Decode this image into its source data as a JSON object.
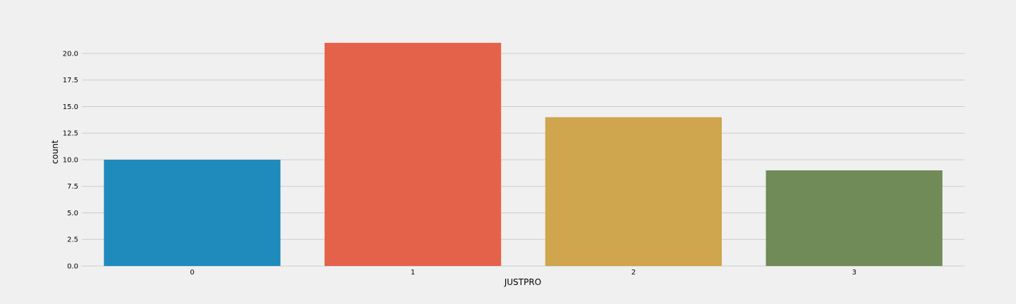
{
  "chart_data": {
    "type": "bar",
    "categories": [
      "0",
      "1",
      "2",
      "3"
    ],
    "values": [
      10,
      21,
      14,
      9
    ],
    "colors": [
      "#1f8bbd",
      "#e5624a",
      "#cfa54d",
      "#708b57"
    ],
    "xlabel": "JUSTPRO",
    "ylabel": "count",
    "ylim": [
      0,
      22.05
    ],
    "yticks": [
      0.0,
      2.5,
      5.0,
      7.5,
      10.0,
      12.5,
      15.0,
      17.5,
      20.0
    ],
    "ytick_labels": [
      "0.0",
      "2.5",
      "5.0",
      "7.5",
      "10.0",
      "12.5",
      "15.0",
      "17.5",
      "20.0"
    ],
    "grid": "horizontal",
    "background": "#f0f0f0"
  }
}
